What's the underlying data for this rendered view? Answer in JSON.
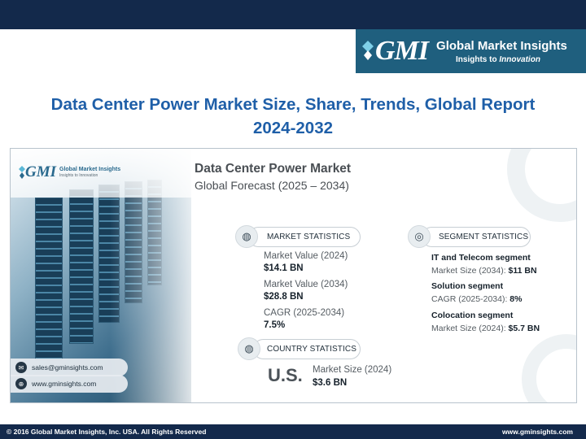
{
  "logo": {
    "mark": "GMI",
    "name": "Global Market Insights",
    "tagline_prefix": "Insights to ",
    "tagline_emphasis": "Innovation"
  },
  "page_title": "Data Center Power Market Size, Share, Trends, Global Report 2024-2032",
  "infographic": {
    "mini_logo": {
      "mark": "GMI",
      "name": "Global Market Insights",
      "tagline": "Insights to Innovation"
    },
    "title": "Data Center Power Market",
    "subtitle": "Global Forecast (2025 – 2034)",
    "market_statistics": {
      "heading": "MARKET STATISTICS",
      "items": [
        {
          "label": "Market Value (2024)",
          "value": "$14.1 BN"
        },
        {
          "label": "Market Value (2034)",
          "value": "$28.8 BN"
        },
        {
          "label": "CAGR (2025-2034)",
          "value": "7.5%"
        }
      ]
    },
    "segment_statistics": {
      "heading": "SEGMENT STATISTICS",
      "items": [
        {
          "segment": "IT and Telecom segment",
          "label": "Market Size (2034): ",
          "value": "$11 BN"
        },
        {
          "segment": "Solution segment",
          "label": "CAGR (2025-2034): ",
          "value": "8%"
        },
        {
          "segment": "Colocation segment",
          "label": "Market Size (2024): ",
          "value": "$5.7 BN"
        }
      ]
    },
    "country_statistics": {
      "heading": "COUNTRY STATISTICS",
      "country": "U.S.",
      "label": "Market Size (2024)",
      "value": "$3.6 BN"
    },
    "contacts": {
      "email": "sales@gminsights.com",
      "website": "www.gminsights.com"
    },
    "icons": {
      "market": "globe-icon",
      "segment": "target-icon",
      "country": "globe-icon",
      "email": "envelope-icon",
      "website": "globe-icon"
    }
  },
  "footer": {
    "copyright": "© 2016 Global Market Insights, Inc. USA.  All Rights Reserved",
    "website": "www.gminsights.com"
  },
  "colors": {
    "navy": "#13294b",
    "logo_teal": "#1f5f7e",
    "title_blue": "#1f5fa8"
  }
}
